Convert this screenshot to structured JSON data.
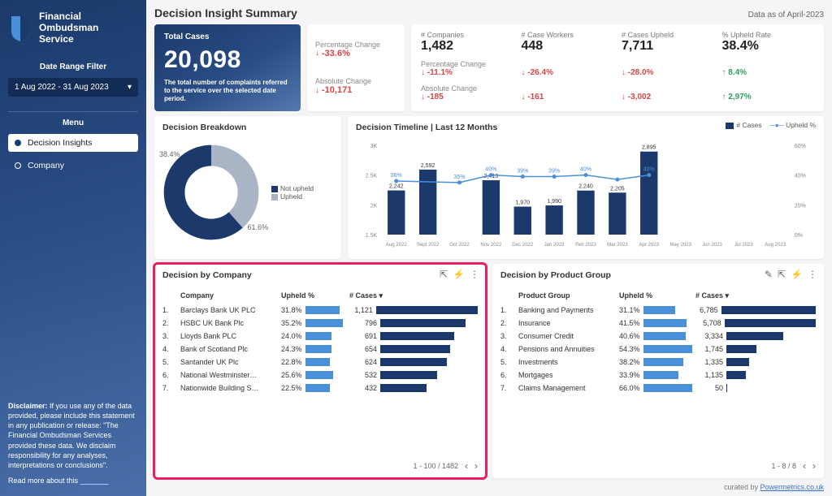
{
  "colors": {
    "primary": "#1b3a6b",
    "primary_mid": "#2a4d85",
    "primary_light": "#5478b0",
    "accent_blue": "#4a8fd9",
    "gray": "#a9b4c4",
    "down": "#d64545",
    "up": "#2e9e5b",
    "highlight": "#e91e63"
  },
  "sidebar": {
    "brand": "Financial\nOmbudsman\nService",
    "date_label": "Date Range Filter",
    "date_value": "1 Aug 2022 - 31 Aug 2023",
    "menu_label": "Menu",
    "items": [
      {
        "label": "Decision Insights",
        "active": true
      },
      {
        "label": "Company",
        "active": false
      }
    ],
    "disclaimer_label": "Disclaimer:",
    "disclaimer_text": "If you use any of the data provided, please include this statement in any publication or release: \"The Financial Ombudsman Services provided these data. We disclaim responsibility for any analyses, interpretations or conclusions\".",
    "readmore": "Read more about this"
  },
  "header": {
    "title": "Decision Insight Summary",
    "asof": "Data as of April-2023"
  },
  "hero": {
    "label": "Total Cases",
    "value": "20,098",
    "subtitle": "The total number of complaints referred to the service over the selected date period."
  },
  "change_card": {
    "pct_label": "Percentage Change",
    "pct_value": "-33.6%",
    "pct_dir": "down",
    "abs_label": "Absolute Change",
    "abs_value": "-10,171",
    "abs_dir": "down"
  },
  "kpis": {
    "cols": [
      {
        "label": "# Companies",
        "value": "1,482",
        "pct": "-11.1%",
        "pct_dir": "down",
        "abs": "-185",
        "abs_dir": "down"
      },
      {
        "label": "# Case Workers",
        "value": "448",
        "pct": "-26.4%",
        "pct_dir": "down",
        "abs": "-161",
        "abs_dir": "down"
      },
      {
        "label": "# Cases Upheld",
        "value": "7,711",
        "pct": "-28.0%",
        "pct_dir": "down",
        "abs": "-3,002",
        "abs_dir": "down"
      },
      {
        "label": "% Upheld Rate",
        "value": "38.4%",
        "pct": "8.4%",
        "pct_dir": "up",
        "abs": "2,97%",
        "abs_dir": "up"
      }
    ],
    "row_labels": {
      "pct": "Percentage Change",
      "abs": "Absolute Change"
    }
  },
  "donut": {
    "title": "Decision Breakdown",
    "segments": [
      {
        "label": "Not upheld",
        "value": 61.6,
        "color": "#1b3a6b"
      },
      {
        "label": "Upheld",
        "value": 38.4,
        "color": "#a9b4c4"
      }
    ]
  },
  "timeline": {
    "title": "Decision Timeline | Last 12 Months",
    "legend": {
      "bars": "# Cases",
      "line": "Upheld %"
    },
    "y_left": {
      "min": 1500,
      "max": 3000,
      "ticks": [
        "1.5K",
        "2K",
        "2.5K",
        "3K"
      ]
    },
    "y_right": {
      "min": 0,
      "max": 60,
      "ticks": [
        "0%",
        "20%",
        "40%",
        "60%"
      ]
    },
    "months": [
      "Aug 2022",
      "Sept 2022",
      "Oct 2022",
      "Nov 2022",
      "Dec 2022",
      "Jan 2023",
      "Feb 2023",
      "Mar 2023",
      "Apr 2023",
      "May 2023",
      "Jun 2023",
      "Jul 2023",
      "Aug 2023"
    ],
    "bars": [
      2242,
      2592,
      null,
      2413,
      1970,
      1990,
      2240,
      2205,
      2895,
      null,
      null,
      null,
      null
    ],
    "bar_labels": [
      "2,242",
      "2,592",
      "",
      "2,413",
      "1,970",
      "1,990",
      "2,240",
      "2,205",
      "2,895",
      "",
      "",
      "",
      ""
    ],
    "line": [
      36,
      null,
      35,
      40,
      39,
      39,
      40,
      37,
      40,
      null,
      null,
      null,
      null
    ],
    "line_labels": [
      "36%",
      "",
      "35%",
      "40%",
      "39%",
      "39%",
      "40%",
      "",
      "40%",
      "",
      "",
      "",
      ""
    ],
    "bar_color": "#1b3a6b",
    "line_color": "#4a8fd9"
  },
  "by_company": {
    "title": "Decision by Company",
    "headers": {
      "col1": "Company",
      "col2": "Upheld %",
      "col3": "# Cases ▾"
    },
    "max_upheld": 60,
    "max_cases": 1200,
    "rows": [
      {
        "n": "1.",
        "name": "Barclays Bank UK PLC",
        "upheld": "31.8%",
        "upheld_v": 31.8,
        "cases": "1,121",
        "cases_v": 1121
      },
      {
        "n": "2.",
        "name": "HSBC UK Bank Plc",
        "upheld": "35.2%",
        "upheld_v": 35.2,
        "cases": "796",
        "cases_v": 796
      },
      {
        "n": "3.",
        "name": "Lloyds Bank PLC",
        "upheld": "24.0%",
        "upheld_v": 24.0,
        "cases": "691",
        "cases_v": 691
      },
      {
        "n": "4.",
        "name": "Bank of Scotland Plc",
        "upheld": "24.3%",
        "upheld_v": 24.3,
        "cases": "654",
        "cases_v": 654
      },
      {
        "n": "5.",
        "name": "Santander UK Plc",
        "upheld": "22.8%",
        "upheld_v": 22.8,
        "cases": "624",
        "cases_v": 624
      },
      {
        "n": "6.",
        "name": "National Westminster…",
        "upheld": "25.6%",
        "upheld_v": 25.6,
        "cases": "532",
        "cases_v": 532
      },
      {
        "n": "7.",
        "name": "Nationwide Building S…",
        "upheld": "22.5%",
        "upheld_v": 22.5,
        "cases": "432",
        "cases_v": 432
      }
    ],
    "pager": "1 - 100 / 1482"
  },
  "by_product": {
    "title": "Decision by Product Group",
    "headers": {
      "col1": "Product Group",
      "col2": "Upheld %",
      "col3": "# Cases ▾"
    },
    "max_upheld": 70,
    "max_cases": 7000,
    "rows": [
      {
        "n": "1.",
        "name": "Banking and Payments",
        "upheld": "31.1%",
        "upheld_v": 31.1,
        "cases": "6,785",
        "cases_v": 6785
      },
      {
        "n": "2.",
        "name": "Insurance",
        "upheld": "41.5%",
        "upheld_v": 41.5,
        "cases": "5,708",
        "cases_v": 5708
      },
      {
        "n": "3.",
        "name": "Consumer Credit",
        "upheld": "40.6%",
        "upheld_v": 40.6,
        "cases": "3,334",
        "cases_v": 3334
      },
      {
        "n": "4.",
        "name": "Pensions and Annuities",
        "upheld": "54.3%",
        "upheld_v": 54.3,
        "cases": "1,745",
        "cases_v": 1745
      },
      {
        "n": "5.",
        "name": "Investments",
        "upheld": "38.2%",
        "upheld_v": 38.2,
        "cases": "1,335",
        "cases_v": 1335
      },
      {
        "n": "6.",
        "name": "Mortgages",
        "upheld": "33.9%",
        "upheld_v": 33.9,
        "cases": "1,135",
        "cases_v": 1135
      },
      {
        "n": "7.",
        "name": "Claims Management",
        "upheld": "66.0%",
        "upheld_v": 66.0,
        "cases": "50",
        "cases_v": 50
      }
    ],
    "pager": "1 - 8 / 8"
  },
  "footer": {
    "text": "curated by ",
    "link": "Powermetrics.co.uk"
  }
}
